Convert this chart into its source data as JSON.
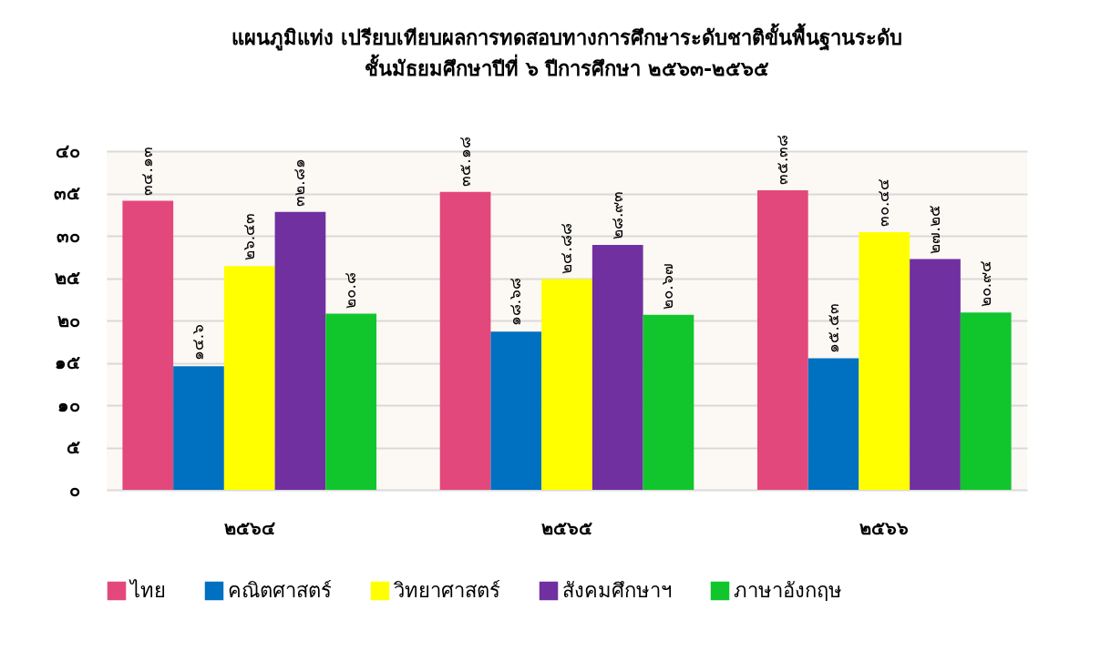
{
  "chart_data": {
    "type": "bar",
    "title": "แผนภูมิแท่ง เปรียบเทียบผลการทดสอบทางการศึกษาระดับชาติขั้นพื้นฐานระดับ",
    "subtitle": "ชั้นมัธยมศึกษาปีที่ ๖ ปีการศึกษา ๒๕๖๓-๒๕๖๕",
    "categories": [
      "๒๕๖๔",
      "๒๕๖๕",
      "๒๕๖๖"
    ],
    "series": [
      {
        "name": "ไทย",
        "color": "#e2487c",
        "values": [
          34.13,
          35.18,
          35.38
        ],
        "value_labels": [
          "๓๔.๑๓",
          "๓๕.๑๘",
          "๓๕.๓๘"
        ]
      },
      {
        "name": "คณิตศาสตร์",
        "color": "#0070c0",
        "values": [
          14.6,
          18.68,
          15.53
        ],
        "value_labels": [
          "๑๔.๖",
          "๑๘.๖๘",
          "๑๕.๕๓"
        ]
      },
      {
        "name": "วิทยาศาสตร์",
        "color": "#ffff00",
        "values": [
          26.43,
          24.88,
          30.44
        ],
        "value_labels": [
          "๒๖.๔๓",
          "๒๔.๘๘",
          "๓๐.๔๔"
        ]
      },
      {
        "name": "สังคมศึกษาฯ",
        "color": "#7030a0",
        "values": [
          32.81,
          28.93,
          27.25
        ],
        "value_labels": [
          "๓๒.๘๑",
          "๒๘.๙๓",
          "๒๗.๒๕"
        ]
      },
      {
        "name": "ภาษาอังกฤษ",
        "color": "#10c62c",
        "values": [
          20.8,
          20.67,
          20.94
        ],
        "value_labels": [
          "๒๐.๘",
          "๒๐.๖๗",
          "๒๐.๙๔"
        ]
      }
    ],
    "ylim": [
      0,
      40
    ],
    "yticks": [
      {
        "value": 0,
        "label": "๐"
      },
      {
        "value": 5,
        "label": "๕"
      },
      {
        "value": 10,
        "label": "๑๐"
      },
      {
        "value": 15,
        "label": "๑๕"
      },
      {
        "value": 20,
        "label": "๒๐"
      },
      {
        "value": 25,
        "label": "๒๕"
      },
      {
        "value": 30,
        "label": "๓๐"
      },
      {
        "value": 35,
        "label": "๓๕"
      },
      {
        "value": 40,
        "label": "๔๐"
      }
    ],
    "grid": "y",
    "legend": "bottom"
  }
}
